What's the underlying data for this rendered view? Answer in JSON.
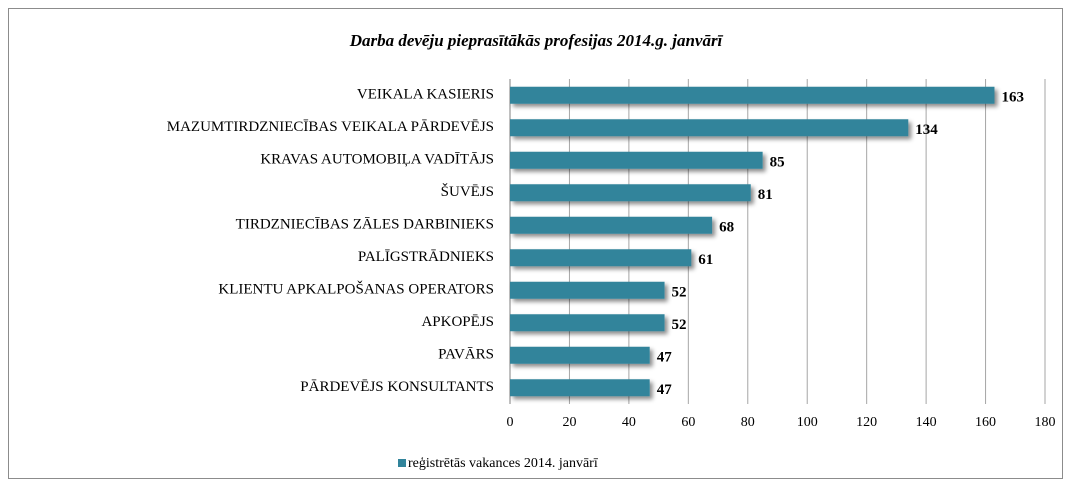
{
  "chart_data": {
    "type": "bar",
    "orientation": "horizontal",
    "title": "Darba devēju pieprasītākās profesijas 2014.g. janvārī",
    "categories": [
      "VEIKALA KASIERIS",
      "MAZUMTIRDZNIECĪBAS VEIKALA PĀRDEVĒJS",
      "KRAVAS AUTOMOBIĻA VADĪTĀJS",
      "ŠUVĒJS",
      "TIRDZNIECĪBAS ZĀLES DARBINIEKS",
      "PALĪGSTRĀDNIEKS",
      "KLIENTU APKALPOŠANAS OPERATORS",
      "APKOPĒJS",
      "PAVĀRS",
      "PĀRDEVĒJS KONSULTANTS"
    ],
    "series": [
      {
        "name": "reģistrētās vakances 2014. janvārī",
        "color": "#31849b",
        "values": [
          163,
          134,
          85,
          81,
          68,
          61,
          52,
          52,
          47,
          47
        ]
      }
    ],
    "xlim": [
      0,
      180
    ],
    "xticks": [
      0,
      20,
      40,
      60,
      80,
      100,
      120,
      140,
      160,
      180
    ],
    "grid": true,
    "legend": "bottom"
  }
}
